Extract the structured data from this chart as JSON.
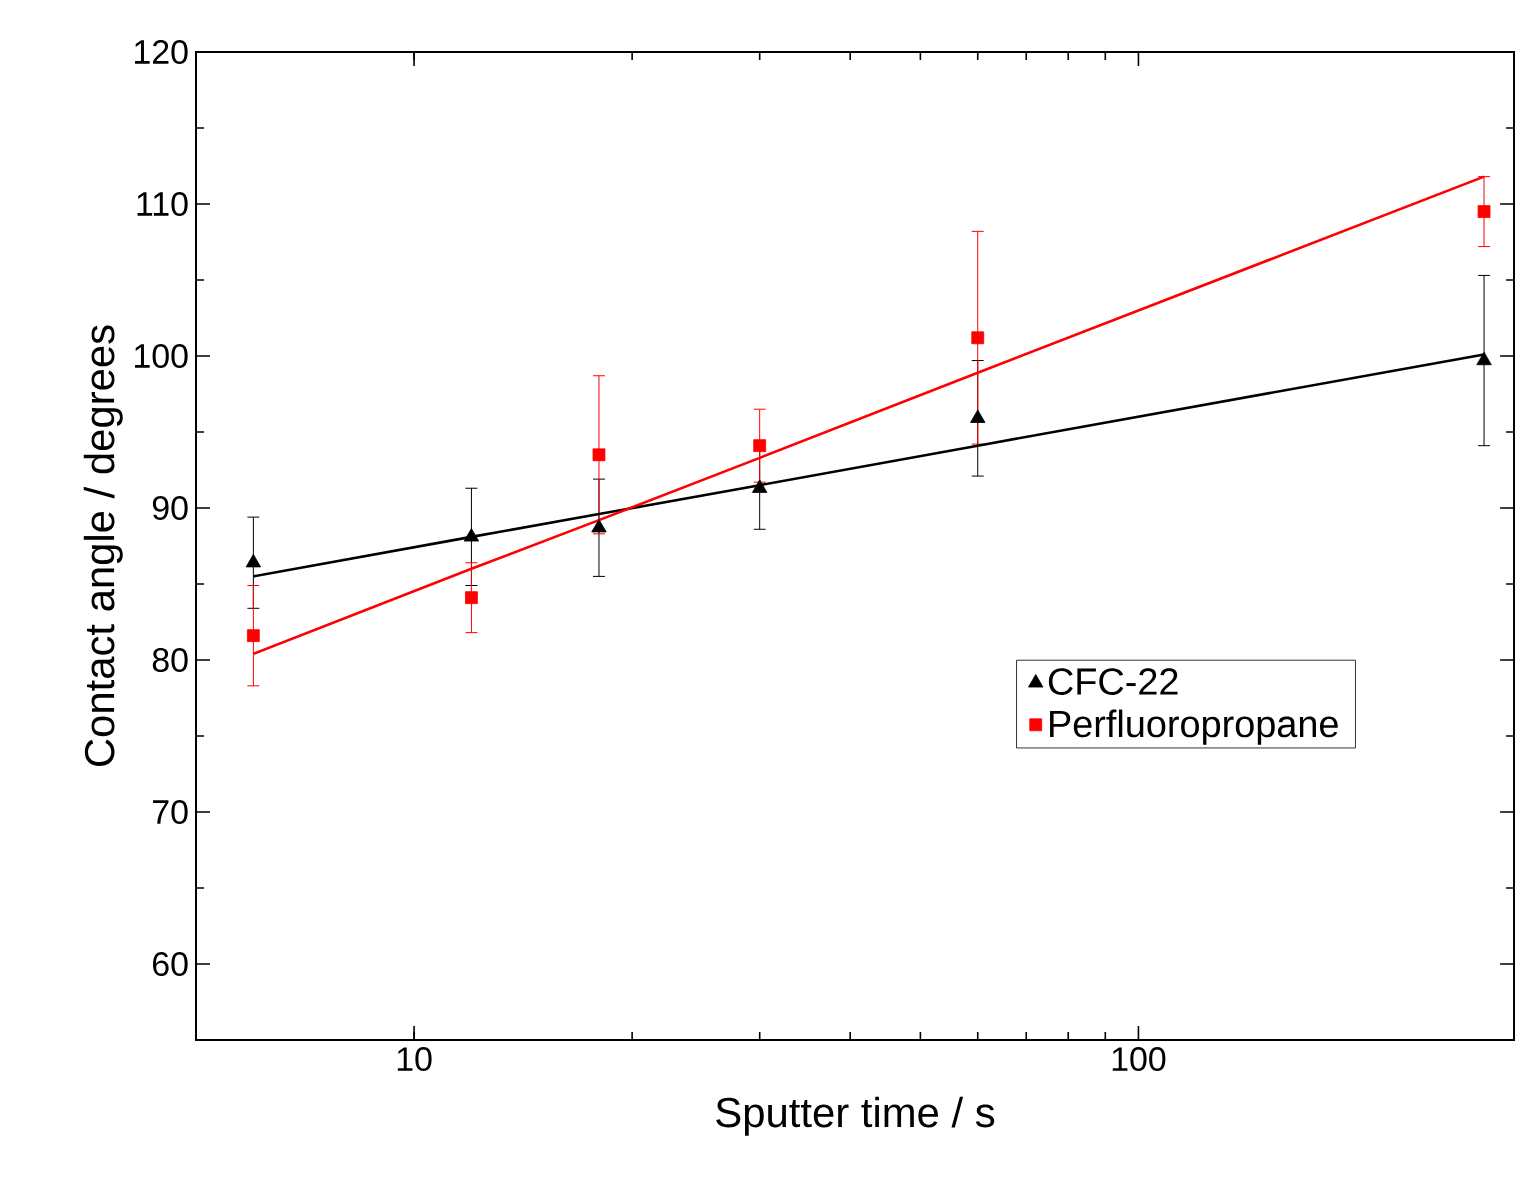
{
  "chart_data": {
    "type": "scatter",
    "xlabel": "Sputter time / s",
    "ylabel": "Contact angle / degrees",
    "log": "x",
    "xlim": [
      5,
      330
    ],
    "xticks": [
      10,
      100
    ],
    "ylim": [
      55,
      120
    ],
    "yticks": [
      60,
      70,
      80,
      90,
      100,
      110,
      120
    ],
    "x": [
      6,
      12,
      18,
      30,
      60,
      300
    ],
    "legend": "right",
    "grid": false,
    "series": [
      {
        "name": "CFC-22",
        "color": "#000000",
        "marker": "triangle",
        "values": [
          86.4,
          88.1,
          88.7,
          91.3,
          95.9,
          99.7
        ],
        "errors": [
          3,
          3.2,
          3.2,
          2.7,
          3.8,
          5.6
        ]
      },
      {
        "name": "Perfluoropropane",
        "color": "#ff0000",
        "marker": "square",
        "values": [
          81.6,
          84.1,
          93.5,
          94.1,
          101.2,
          109.5
        ],
        "errors": [
          3.3,
          2.3,
          5.2,
          2.4,
          7,
          2.3
        ]
      },
      {
        "type": "line",
        "color": "#000000",
        "marker": "none",
        "values": [
          85.5,
          88.1,
          89.6,
          91.5,
          94.1,
          100.1
        ]
      },
      {
        "type": "line",
        "color": "#ff0000",
        "marker": "none",
        "values": [
          80.4,
          86.0,
          89.2,
          93.3,
          98.9,
          111.8
        ]
      }
    ]
  }
}
